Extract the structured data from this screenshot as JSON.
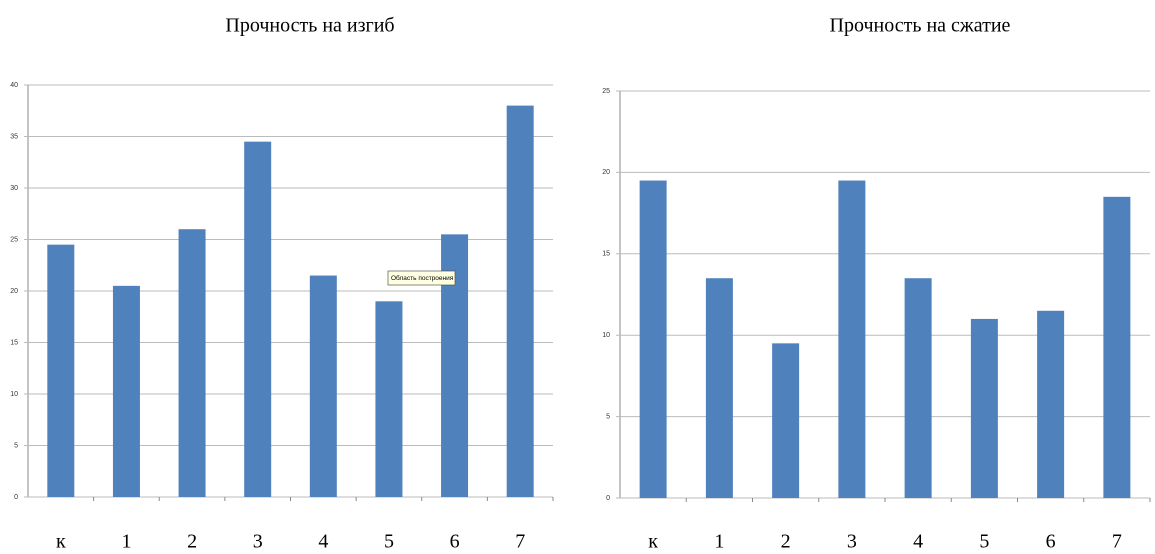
{
  "chart_data": [
    {
      "type": "bar",
      "title": "Прочность на изгиб",
      "categories": [
        "к",
        "1",
        "2",
        "3",
        "4",
        "5",
        "6",
        "7"
      ],
      "values": [
        24.5,
        20.5,
        26,
        34.5,
        21.5,
        19,
        25.5,
        38
      ],
      "color": "#4f81bd",
      "ylim": [
        0,
        40
      ],
      "yticks": [
        0,
        5,
        10,
        15,
        20,
        25,
        30,
        35,
        40
      ],
      "grid": true
    },
    {
      "type": "bar",
      "title": "Прочность на сжатие",
      "categories": [
        "к",
        "1",
        "2",
        "3",
        "4",
        "5",
        "6",
        "7"
      ],
      "values": [
        19.5,
        13.5,
        9.5,
        19.5,
        13.5,
        11,
        11.5,
        18.5
      ],
      "color": "#4f81bd",
      "ylim": [
        0,
        25
      ],
      "yticks": [
        0,
        5,
        10,
        15,
        20,
        25
      ],
      "grid": true
    }
  ],
  "tooltip": "Область построения"
}
